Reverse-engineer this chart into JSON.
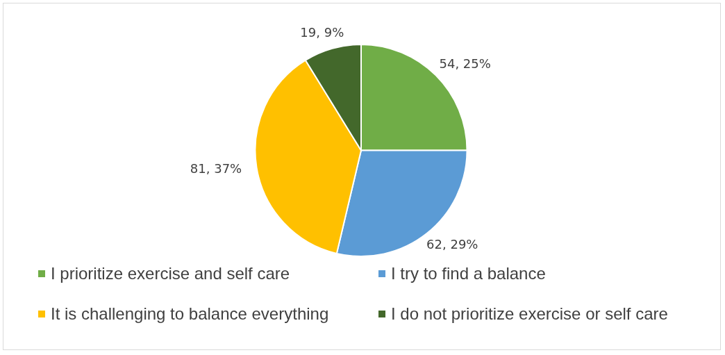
{
  "chart_data": {
    "type": "pie",
    "categories": [
      "I prioritize exercise and self care",
      "I try to find a balance",
      "It is challenging to balance everything",
      "I do not prioritize exercise or self care"
    ],
    "values": [
      54,
      62,
      81,
      19
    ],
    "colors": [
      "#70ad47",
      "#5b9bd5",
      "#ffc000",
      "#43682b"
    ],
    "value_labels": [
      "54, 25%",
      "62, 29%",
      "81, 37%",
      "19, 9%"
    ],
    "legend": "bottom"
  }
}
